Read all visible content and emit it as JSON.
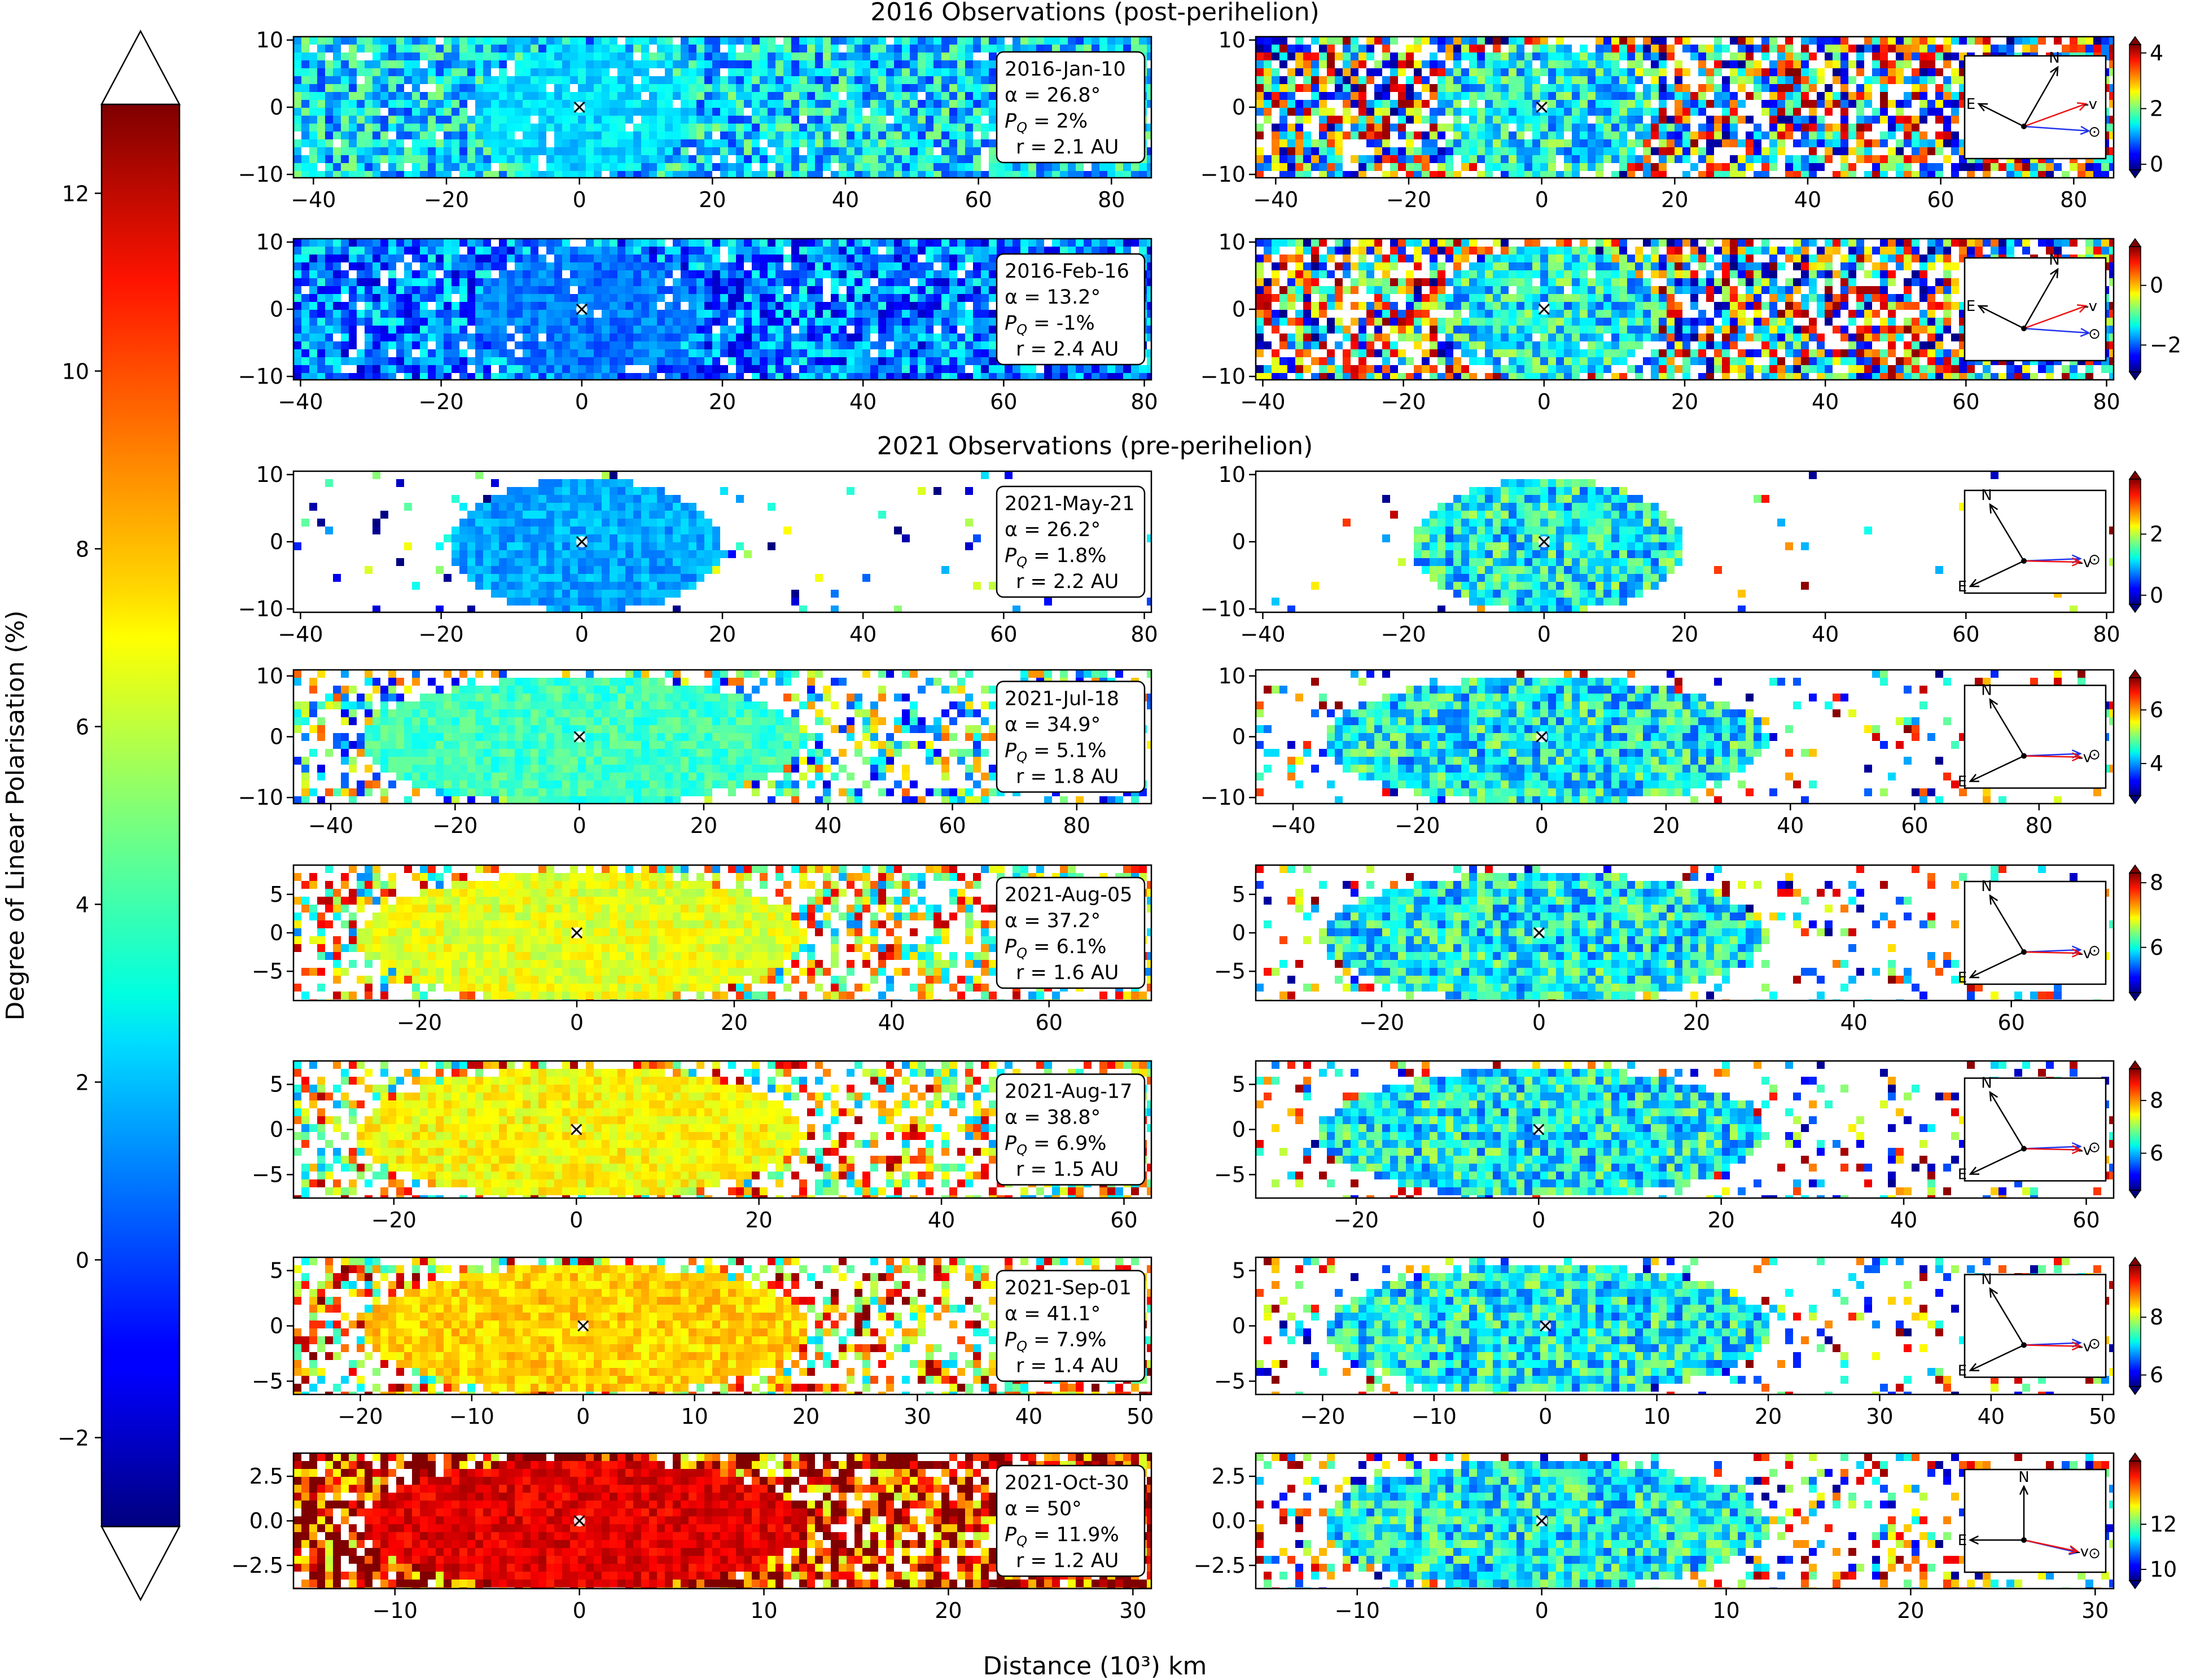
{
  "figure": {
    "section_titles": [
      "2016 Observations (post-perihelion)",
      "2021 Observations (pre-perihelion)"
    ],
    "xlabel": "Distance (10³) km"
  },
  "main_colorbar": {
    "label": "Degree of Linear Polarisation (%)",
    "range": [
      -3,
      13
    ],
    "ticks": [
      -2,
      0,
      2,
      4,
      6,
      8,
      10,
      12
    ],
    "tick_labels": [
      "−2",
      "0",
      "2",
      "4",
      "6",
      "8",
      "10",
      "12"
    ],
    "colormap": "jet"
  },
  "chart_data": [
    {
      "type": "heatmap",
      "date": "2016-Jan-10",
      "info": [
        "2016-Jan-10",
        "α = 26.8°",
        "P_Q = 2%",
        "r = 2.1 AU"
      ],
      "alpha_deg": 26.8,
      "PQ_percent": 2,
      "r_AU": 2.1,
      "section": "2016 Observations (post-perihelion)",
      "xlim": [
        -43,
        86
      ],
      "ylim": [
        -10.5,
        10.5
      ],
      "xticks": [
        -40,
        -20,
        0,
        20,
        40,
        60,
        80
      ],
      "yticks": [
        10,
        0,
        -10
      ],
      "left_level": 2.5,
      "right_cb": {
        "range": [
          -0.2,
          4.3
        ],
        "ticks": [
          0,
          2,
          4
        ]
      },
      "density": 0.95,
      "core": "none",
      "core_color": "#33c8f0",
      "compass": "2016"
    },
    {
      "type": "heatmap",
      "date": "2016-Feb-16",
      "info": [
        "2016-Feb-16",
        "α = 13.2°",
        "P_Q = -1%",
        "r = 2.4 AU"
      ],
      "alpha_deg": 13.2,
      "PQ_percent": -1,
      "r_AU": 2.4,
      "section": "2016 Observations (post-perihelion)",
      "xlim": [
        -41,
        81
      ],
      "ylim": [
        -10.5,
        10.5
      ],
      "xticks": [
        -40,
        -20,
        0,
        20,
        40,
        60,
        80
      ],
      "yticks": [
        10,
        0,
        -10
      ],
      "left_level": 0.9,
      "right_cb": {
        "range": [
          -2.9,
          1.3
        ],
        "ticks": [
          -2,
          0
        ]
      },
      "density": 0.95,
      "core": "none",
      "core_color": "#1e46e6",
      "compass": "2016"
    },
    {
      "type": "heatmap",
      "date": "2021-May-21",
      "info": [
        "2021-May-21",
        "α = 26.2°",
        "P_Q = 1.8%",
        "r = 2.2 AU"
      ],
      "alpha_deg": 26.2,
      "PQ_percent": 1.8,
      "r_AU": 2.2,
      "section": "2021 Observations (pre-perihelion)",
      "xlim": [
        -41,
        81
      ],
      "ylim": [
        -10.5,
        10.5
      ],
      "xticks": [
        -40,
        -20,
        0,
        20,
        40,
        60,
        80
      ],
      "yticks": [
        10,
        0,
        -10
      ],
      "left_level": 1.6,
      "right_cb": {
        "range": [
          -0.3,
          3.8
        ],
        "ticks": [
          0,
          2
        ]
      },
      "density": 0.05,
      "core": "blob",
      "core_color": "#3a8cf5",
      "compass": "2021"
    },
    {
      "type": "heatmap",
      "date": "2021-Jul-18",
      "info": [
        "2021-Jul-18",
        "α = 34.9°",
        "P_Q = 5.1%",
        "r = 1.8 AU"
      ],
      "alpha_deg": 34.9,
      "PQ_percent": 5.1,
      "r_AU": 1.8,
      "section": "2021 Observations (pre-perihelion)",
      "xlim": [
        -46,
        92
      ],
      "ylim": [
        -11,
        11
      ],
      "xticks": [
        -40,
        -20,
        0,
        20,
        40,
        60,
        80
      ],
      "yticks": [
        10,
        0,
        -10
      ],
      "left_level": 4.0,
      "right_cb": {
        "range": [
          2.8,
          7.2
        ],
        "ticks": [
          4,
          6
        ]
      },
      "density": 0.45,
      "core": "ellipse",
      "core_color": "#37c8dc",
      "compass": "2021"
    },
    {
      "type": "heatmap",
      "date": "2021-Aug-05",
      "info": [
        "2021-Aug-05",
        "α = 37.2°",
        "P_Q = 6.1%",
        "r = 1.6 AU"
      ],
      "alpha_deg": 37.2,
      "PQ_percent": 6.1,
      "r_AU": 1.6,
      "section": "2021 Observations (pre-perihelion)",
      "xlim": [
        -36,
        73
      ],
      "ylim": [
        -8.8,
        8.8
      ],
      "xticks": [
        -20,
        0,
        20,
        40,
        60
      ],
      "yticks": [
        5,
        0,
        -5
      ],
      "left_level": 6.6,
      "right_cb": {
        "range": [
          4.6,
          8.3
        ],
        "ticks": [
          6,
          8
        ]
      },
      "density": 0.5,
      "core": "ellipse",
      "core_color": "#b4e650",
      "compass": "2021"
    },
    {
      "type": "heatmap",
      "date": "2021-Aug-17",
      "info": [
        "2021-Aug-17",
        "α = 38.8°",
        "P_Q = 6.9%",
        "r = 1.5 AU"
      ],
      "alpha_deg": 38.8,
      "PQ_percent": 6.9,
      "r_AU": 1.5,
      "section": "2021 Observations (pre-perihelion)",
      "xlim": [
        -31,
        63
      ],
      "ylim": [
        -7.6,
        7.6
      ],
      "xticks": [
        -20,
        0,
        20,
        40,
        60
      ],
      "yticks": [
        5,
        0,
        -5
      ],
      "left_level": 7.0,
      "right_cb": {
        "range": [
          4.6,
          9.2
        ],
        "ticks": [
          6,
          8
        ]
      },
      "density": 0.5,
      "core": "ellipse",
      "core_color": "#c3ea46",
      "compass": "2021"
    },
    {
      "type": "heatmap",
      "date": "2021-Sep-01",
      "info": [
        "2021-Sep-01",
        "α = 41.1°",
        "P_Q = 7.9%",
        "r = 1.4 AU"
      ],
      "alpha_deg": 41.1,
      "PQ_percent": 7.9,
      "r_AU": 1.4,
      "section": "2021 Observations (pre-perihelion)",
      "xlim": [
        -26,
        51
      ],
      "ylim": [
        -6.2,
        6.2
      ],
      "xticks": [
        -20,
        -10,
        0,
        10,
        20,
        30,
        40,
        50
      ],
      "yticks": [
        5,
        0,
        -5
      ],
      "left_level": 7.7,
      "right_cb": {
        "range": [
          5.6,
          9.8
        ],
        "ticks": [
          6,
          8
        ]
      },
      "density": 0.5,
      "core": "ellipse",
      "core_color": "#e6e132",
      "compass": "2021"
    },
    {
      "type": "heatmap",
      "date": "2021-Oct-30",
      "info": [
        "2021-Oct-30",
        "α = 50°",
        "P_Q = 11.9%",
        "r = 1.2 AU"
      ],
      "alpha_deg": 50,
      "PQ_percent": 11.9,
      "r_AU": 1.2,
      "section": "2021 Observations (pre-perihelion)",
      "xlim": [
        -15.5,
        31
      ],
      "ylim": [
        -3.8,
        3.8
      ],
      "xticks": [
        -10,
        0,
        10,
        20,
        30
      ],
      "yticks": [
        2.5,
        0.0,
        -2.5
      ],
      "left_level": 11.4,
      "right_cb": {
        "range": [
          9.5,
          14.8
        ],
        "ticks": [
          10,
          12
        ]
      },
      "density": 0.8,
      "core": "ellipse",
      "core_color": "#f03c14",
      "compass": "oct"
    }
  ],
  "compass_labels": {
    "north": "N",
    "east": "E",
    "velocity": "-v",
    "sun": "⊙"
  }
}
